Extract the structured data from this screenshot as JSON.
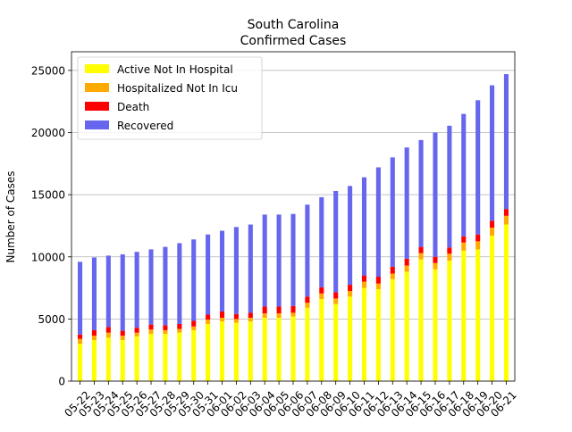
{
  "chart_data": {
    "type": "bar",
    "stacked": true,
    "title": "South Carolina",
    "subtitle": "Confirmed Cases",
    "xlabel": "",
    "ylabel": "Number of Cases",
    "ylim": [
      0,
      26500
    ],
    "yticks": [
      0,
      5000,
      10000,
      15000,
      20000,
      25000
    ],
    "grid": "horizontal",
    "legend_position": "top-left",
    "categories": [
      "05-22",
      "05-23",
      "05-24",
      "05-25",
      "05-26",
      "05-27",
      "05-28",
      "05-29",
      "05-30",
      "05-31",
      "06-01",
      "06-02",
      "06-03",
      "06-04",
      "06-05",
      "06-06",
      "06-07",
      "06-08",
      "06-09",
      "06-10",
      "06-11",
      "06-12",
      "06-13",
      "06-14",
      "06-15",
      "06-16",
      "06-17",
      "06-18",
      "06-19",
      "06-20",
      "06-21"
    ],
    "series": [
      {
        "name": "Active Not In Hospital",
        "color": "#ffff00",
        "values": [
          3000,
          3300,
          3500,
          3300,
          3600,
          3800,
          3800,
          3900,
          4100,
          4600,
          4800,
          4700,
          4800,
          5100,
          5100,
          5200,
          5900,
          6600,
          6200,
          6800,
          7500,
          7400,
          8200,
          8800,
          9800,
          9000,
          9700,
          10500,
          10600,
          11700,
          12600
        ]
      },
      {
        "name": "Hospitalized Not In Icu",
        "color": "#ffaa00",
        "values": [
          400,
          350,
          400,
          350,
          300,
          350,
          300,
          300,
          300,
          350,
          300,
          300,
          300,
          350,
          350,
          300,
          400,
          450,
          450,
          450,
          500,
          450,
          450,
          500,
          500,
          500,
          550,
          650,
          650,
          650,
          700
        ]
      },
      {
        "name": "Death",
        "color": "#ff0000",
        "values": [
          350,
          450,
          450,
          400,
          400,
          400,
          400,
          400,
          450,
          400,
          500,
          400,
          400,
          550,
          550,
          550,
          500,
          500,
          500,
          500,
          500,
          550,
          550,
          550,
          500,
          500,
          500,
          500,
          550,
          550,
          550
        ]
      },
      {
        "name": "Recovered",
        "color": "#6666ee",
        "values": [
          5850,
          5850,
          5750,
          6150,
          6100,
          6050,
          6300,
          6500,
          6550,
          6450,
          6500,
          7000,
          7100,
          7400,
          7400,
          7400,
          7400,
          7250,
          8150,
          7950,
          7900,
          8800,
          8800,
          8950,
          8600,
          10000,
          9800,
          9850,
          10800,
          10900,
          10850
        ]
      }
    ]
  }
}
